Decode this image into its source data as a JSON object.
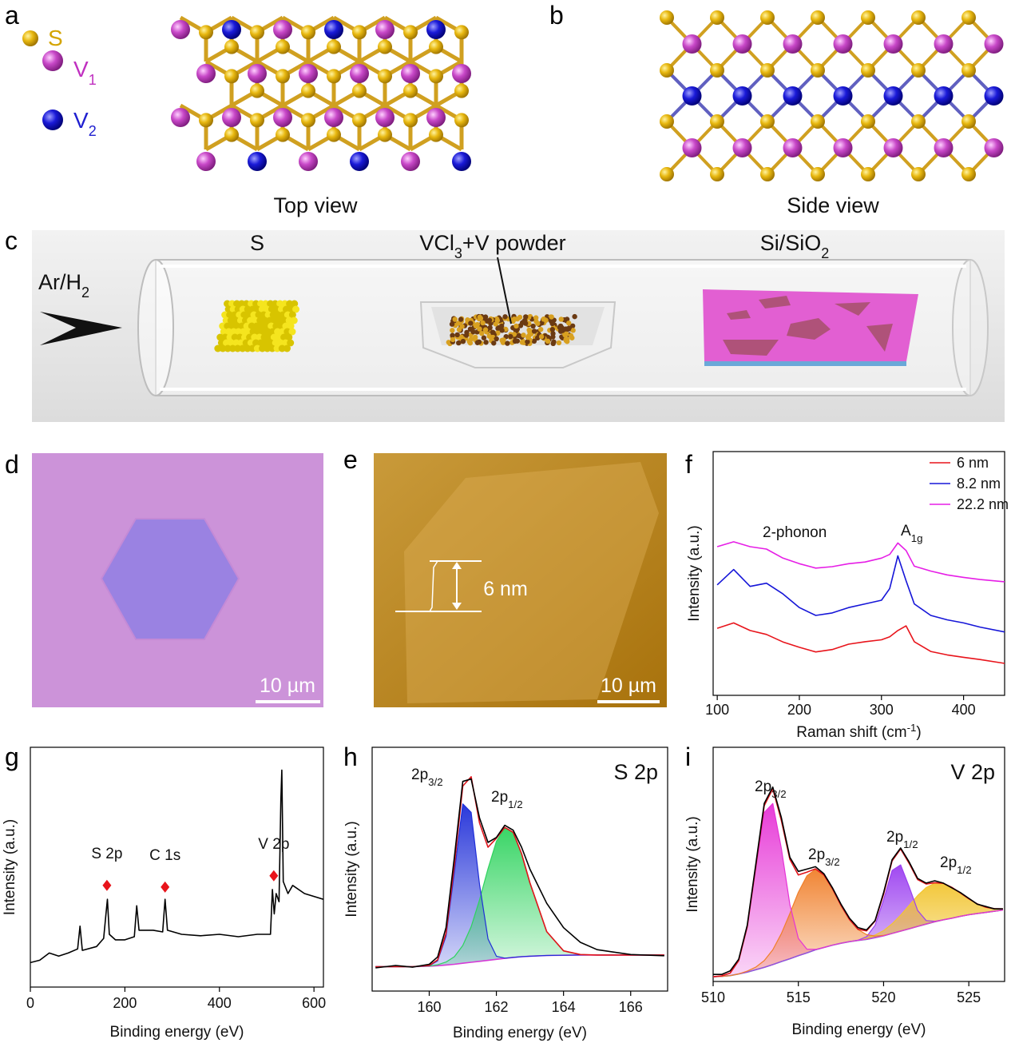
{
  "panel_labels": [
    "a",
    "b",
    "c",
    "d",
    "e",
    "f",
    "g",
    "h",
    "i"
  ],
  "a": {
    "legend": [
      {
        "label": "S"
      },
      {
        "label": "V",
        "sub": "1"
      },
      {
        "label": "V",
        "sub": "2"
      }
    ],
    "caption": "Top view"
  },
  "b": {
    "caption": "Side view"
  },
  "c": {
    "gas": {
      "text": "Ar/H",
      "sub": "2"
    },
    "labels": [
      {
        "text": "S"
      },
      {
        "text": "VCl",
        "sub": "3",
        "tail": "+V powder"
      },
      {
        "text": "Si/SiO",
        "sub": "2"
      }
    ]
  },
  "d": {
    "scale_bar": "10 µm"
  },
  "e": {
    "height": "6 nm",
    "scale_bar": "10 µm"
  },
  "chart_data": [
    {
      "type": "line",
      "x_label": {
        "text": "Raman shift (cm",
        "sup": "-1",
        "tail": ")"
      },
      "y_label": "Intensity (a.u.)",
      "x": [
        100,
        120,
        140,
        160,
        180,
        200,
        220,
        240,
        260,
        280,
        300,
        310,
        320,
        330,
        340,
        360,
        380,
        400,
        420,
        450
      ],
      "series": [
        {
          "name": "6 nm",
          "color": "#e8141b",
          "values": [
            2.75,
            2.97,
            2.66,
            2.5,
            2.19,
            1.97,
            1.78,
            1.88,
            2.1,
            2.2,
            2.28,
            2.4,
            2.66,
            2.85,
            2.2,
            1.8,
            1.66,
            1.56,
            1.47,
            1.31
          ]
        },
        {
          "name": "8.2 nm",
          "color": "#1616d8",
          "values": [
            4.53,
            5.16,
            4.47,
            4.6,
            4.16,
            3.6,
            3.28,
            3.38,
            3.6,
            3.75,
            3.9,
            4.38,
            5.72,
            4.7,
            3.75,
            3.28,
            3.1,
            2.97,
            2.8,
            2.6
          ]
        },
        {
          "name": "22.2 nm",
          "color": "#e61ee6",
          "values": [
            6.1,
            6.3,
            6.1,
            6.0,
            5.63,
            5.4,
            5.22,
            5.28,
            5.4,
            5.47,
            5.63,
            5.78,
            6.25,
            5.94,
            5.3,
            5.1,
            4.94,
            4.84,
            4.75,
            4.66
          ]
        }
      ],
      "xlim": [
        95,
        450
      ],
      "xticks": [
        100,
        200,
        300,
        400
      ],
      "ylim": [
        0,
        10
      ],
      "legend": "upper right",
      "annotations": [
        {
          "text": "2-phonon"
        },
        {
          "text": "A",
          "sub": "1g"
        }
      ]
    },
    {
      "type": "line",
      "x_label": "Binding energy (eV)",
      "y_label": "Intensity (a.u.)",
      "x": [
        0,
        20,
        40,
        60,
        80,
        100,
        105,
        110,
        140,
        155,
        160,
        163,
        167,
        180,
        200,
        220,
        225,
        230,
        260,
        280,
        285,
        290,
        320,
        360,
        400,
        440,
        480,
        508,
        512,
        516,
        520,
        526,
        530,
        532,
        535,
        545,
        555,
        580,
        620
      ],
      "series": [
        {
          "color": "#000000",
          "values": [
            1.02,
            1.12,
            1.42,
            1.29,
            1.42,
            1.59,
            2.54,
            1.53,
            1.69,
            2.03,
            3.05,
            3.66,
            2.2,
            1.97,
            1.97,
            2.1,
            3.39,
            2.37,
            2.37,
            2.3,
            3.66,
            2.37,
            2.2,
            2.14,
            2.2,
            2.1,
            2.2,
            2.2,
            4.07,
            3.05,
            3.9,
            3.56,
            7.8,
            9.05,
            4.4,
            3.9,
            4.24,
            3.9,
            3.66
          ]
        }
      ],
      "peak_markers": {
        "x": [
          162,
          285,
          515
        ],
        "values": [
          4.24,
          4.17,
          4.64
        ],
        "labels": [
          "S 2p",
          "C 1s",
          "V 2p"
        ],
        "color": "#e8141b"
      },
      "xlim": [
        0,
        620
      ],
      "xticks": [
        0,
        200,
        400,
        600
      ],
      "ylim": [
        0,
        10
      ]
    },
    {
      "type": "line",
      "title": "S 2p",
      "x_label": "Binding energy (eV)",
      "y_label": "Intensity (a.u.)",
      "x": [
        158.4,
        159,
        159.5,
        160,
        160.25,
        160.5,
        160.75,
        161,
        161.25,
        161.5,
        161.75,
        162,
        162.25,
        162.5,
        162.75,
        163,
        163.5,
        164,
        164.5,
        165,
        166,
        167
      ],
      "series": [
        {
          "color": "#000000",
          "values": [
            0.95,
            1.05,
            0.98,
            1.1,
            1.4,
            2.6,
            5.5,
            8.6,
            8.7,
            7.1,
            6.1,
            6.3,
            6.8,
            6.6,
            5.9,
            5.0,
            3.6,
            2.6,
            2.0,
            1.7,
            1.5,
            1.45
          ]
        },
        {
          "color": "#e0141b",
          "values": [
            1.0,
            1.0,
            1.0,
            1.05,
            1.28,
            2.37,
            5.19,
            8.41,
            8.79,
            6.89,
            5.9,
            6.27,
            6.71,
            6.51,
            5.64,
            4.44,
            2.44,
            1.65,
            1.5,
            1.48,
            1.48,
            1.48
          ]
        },
        {
          "color": "#1f2ed8",
          "area": true,
          "values": [
            1.0,
            1.0,
            1.0,
            1.04,
            1.24,
            2.25,
            4.88,
            7.68,
            7.33,
            4.37,
            2.14,
            1.43,
            1.35,
            1.38,
            1.41,
            1.43,
            1.46,
            1.47,
            1.48,
            1.48,
            1.48,
            1.48
          ]
        },
        {
          "color": "#2fd35e",
          "area": true,
          "values": [
            1.0,
            1.0,
            1.0,
            1.03,
            1.08,
            1.19,
            1.41,
            1.87,
            2.64,
            3.74,
            5.02,
            6.14,
            6.7,
            6.51,
            5.64,
            4.44,
            2.44,
            1.65,
            1.5,
            1.48,
            1.48,
            1.48
          ]
        },
        {
          "color": "#d63ad6",
          "values": [
            1.0,
            1.0,
            1.0,
            1.02,
            1.04,
            1.07,
            1.1,
            1.14,
            1.18,
            1.22,
            1.26,
            1.3,
            1.34,
            1.38,
            1.41,
            1.43,
            1.46,
            1.47,
            1.48,
            1.48,
            1.48,
            1.48
          ]
        }
      ],
      "xlim": [
        158.3,
        167.1
      ],
      "xticks": [
        160,
        162,
        164,
        166
      ],
      "ylim": [
        0,
        10
      ],
      "annotations": [
        {
          "text": "2p",
          "sub": "3/2"
        },
        {
          "text": "2p",
          "sub": "1/2"
        }
      ]
    },
    {
      "type": "line",
      "title": "V 2p",
      "x_label": "Binding energy (eV)",
      "y_label": "Intensity (a.u.)",
      "x": [
        510,
        510.5,
        511,
        511.5,
        512,
        512.5,
        513,
        513.5,
        514,
        514.5,
        515,
        515.5,
        516,
        516.5,
        517,
        517.5,
        518,
        518.5,
        519,
        519.5,
        520,
        520.5,
        521,
        521.5,
        522,
        522.5,
        523,
        523.5,
        524,
        524.5,
        525,
        525.5,
        526,
        526.5,
        527
      ],
      "series": [
        {
          "color": "#000000",
          "values": [
            0.3,
            0.3,
            0.45,
            0.95,
            2.4,
            5.0,
            7.6,
            8.3,
            7.0,
            5.3,
            4.7,
            4.8,
            4.9,
            4.6,
            4.0,
            3.3,
            2.7,
            2.3,
            2.2,
            2.6,
            3.8,
            5.2,
            5.7,
            5.1,
            4.4,
            4.2,
            4.3,
            4.2,
            4.0,
            3.8,
            3.55,
            3.3,
            3.2,
            3.1,
            3.1
          ]
        },
        {
          "color": "#e0141b",
          "values": [
            0.2,
            0.24,
            0.36,
            0.89,
            2.34,
            4.92,
            7.51,
            8.23,
            6.88,
            5.21,
            4.55,
            4.67,
            4.81,
            4.55,
            3.96,
            3.25,
            2.64,
            2.23,
            2.16,
            2.58,
            3.73,
            5.15,
            5.66,
            5.04,
            4.35,
            4.16,
            4.22,
            4.19,
            4.02,
            3.78,
            3.53,
            3.31,
            3.17,
            3.11,
            3.1
          ]
        },
        {
          "color": "#e633d6",
          "area": true,
          "values": [
            0.2,
            0.24,
            0.36,
            0.89,
            2.3,
            4.81,
            7.22,
            7.6,
            5.69,
            3.28,
            1.84,
            1.38,
            1.37,
            1.45,
            1.55,
            1.63,
            1.7,
            1.75,
            1.8,
            1.87,
            1.95,
            2.05,
            2.15,
            2.25,
            2.35,
            2.45,
            2.55,
            2.63,
            2.7,
            2.78,
            2.85,
            2.9,
            2.95,
            3.0,
            3.05
          ]
        },
        {
          "color": "#f07f2a",
          "area": true,
          "values": [
            0.2,
            0.22,
            0.25,
            0.32,
            0.44,
            0.61,
            0.89,
            1.35,
            2.04,
            2.9,
            3.81,
            4.51,
            4.79,
            4.55,
            3.96,
            3.25,
            2.64,
            2.22,
            2.0,
            1.94,
            1.97,
            2.05,
            2.15,
            2.25,
            2.35,
            2.45,
            2.55,
            2.63,
            2.7,
            2.78,
            2.85,
            2.9,
            2.95,
            3.0,
            3.05
          ]
        },
        {
          "color": "#9b3ff0",
          "area": true,
          "values": [
            0.2,
            0.22,
            0.25,
            0.32,
            0.4,
            0.5,
            0.6,
            0.72,
            0.85,
            0.97,
            1.1,
            1.22,
            1.35,
            1.45,
            1.55,
            1.63,
            1.7,
            1.76,
            1.91,
            2.4,
            3.49,
            4.74,
            4.98,
            4.04,
            3.03,
            2.6,
            2.57,
            2.63,
            2.7,
            2.78,
            2.85,
            2.9,
            2.95,
            3.0,
            3.05
          ]
        },
        {
          "color": "#f2c531",
          "area": true,
          "values": [
            0.2,
            0.22,
            0.25,
            0.32,
            0.4,
            0.5,
            0.6,
            0.72,
            0.85,
            0.97,
            1.1,
            1.22,
            1.35,
            1.45,
            1.55,
            1.63,
            1.7,
            1.75,
            1.85,
            1.98,
            2.17,
            2.46,
            2.83,
            3.25,
            3.67,
            4.01,
            4.2,
            4.19,
            4.02,
            3.78,
            3.53,
            3.31,
            3.17,
            3.11,
            3.1
          ]
        },
        {
          "color": "#3b8fc4",
          "values": [
            0.2,
            0.22,
            0.25,
            0.32,
            0.4,
            0.5,
            0.6,
            0.72,
            0.85,
            0.97,
            1.1,
            1.22,
            1.35,
            1.45,
            1.55,
            1.63,
            1.7,
            1.75,
            1.8,
            1.87,
            1.95,
            2.05,
            2.15,
            2.25,
            2.35,
            2.45,
            2.55,
            2.63,
            2.7,
            2.78,
            2.85,
            2.9,
            2.95,
            3.0,
            3.05
          ]
        }
      ],
      "xlim": [
        510,
        527.1
      ],
      "xticks": [
        510,
        515,
        520,
        525
      ],
      "ylim": [
        0,
        10
      ],
      "annotations": [
        {
          "text": "2p",
          "sub": "3/2"
        },
        {
          "text": "2p",
          "sub": "3/2"
        },
        {
          "text": "2p",
          "sub": "1/2"
        },
        {
          "text": "2p",
          "sub": "1/2"
        }
      ]
    }
  ]
}
